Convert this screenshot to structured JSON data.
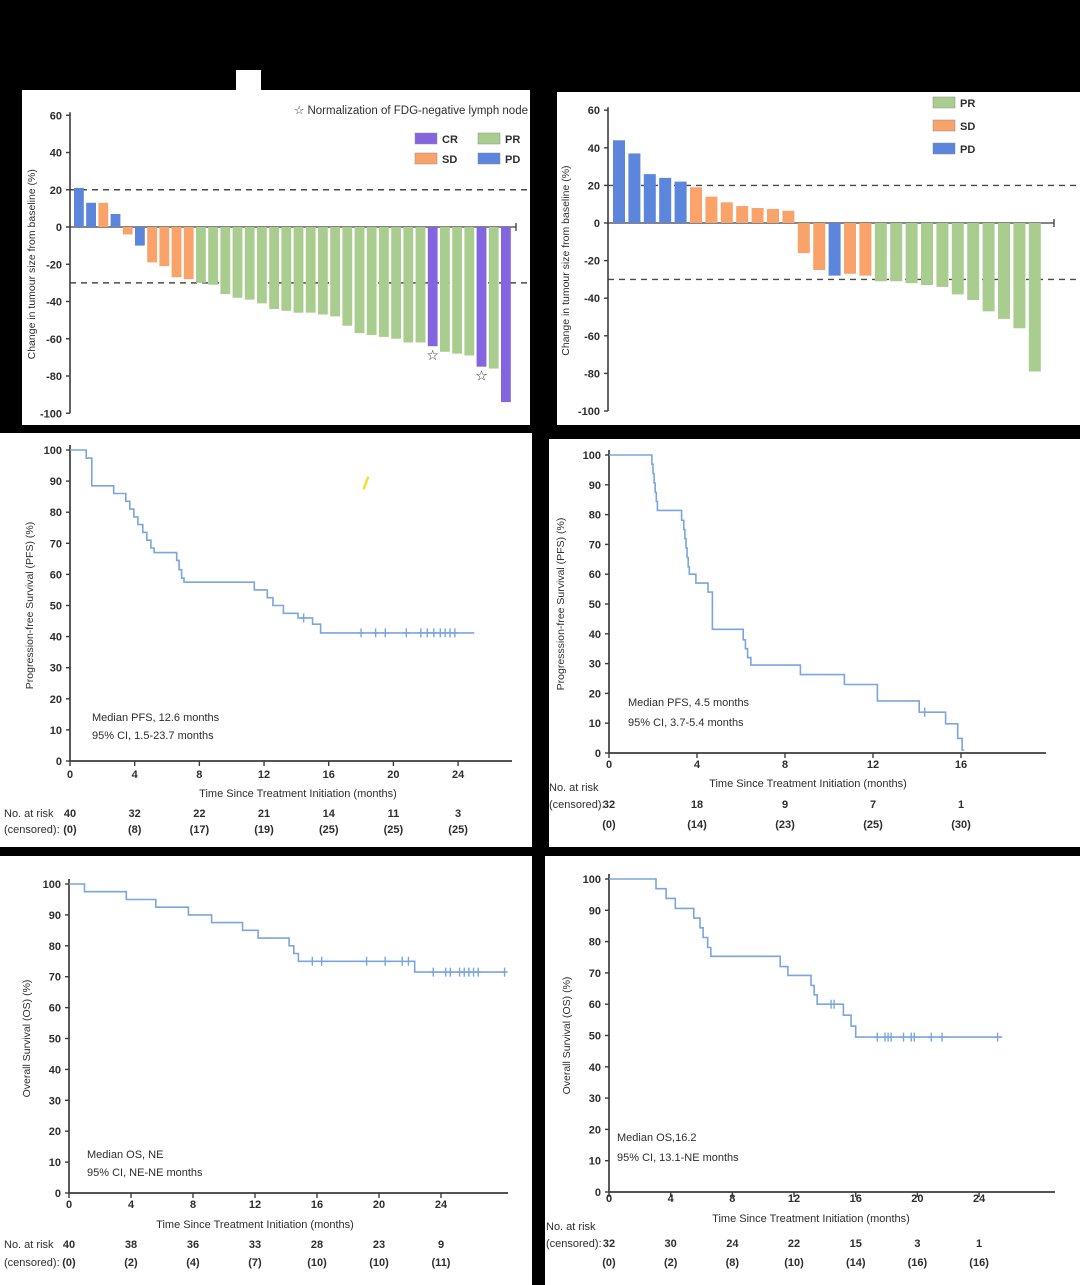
{
  "page": {
    "background": "#000000",
    "description": "Six-panel oncology efficacy figure: two tumour-size waterfall plots and four Kaplan-Meier survival curves"
  },
  "colors": {
    "CR": "#8465e0",
    "SD": "#f9a269",
    "PR": "#a9cd8f",
    "PD": "#5b86db",
    "km_line": "#7aa5e0",
    "axis": "#3c3c3c",
    "dashed": "#4a4a4a",
    "text": "#2e2e2e",
    "highlight": "#f2e33c"
  },
  "chart_data": [
    {
      "id": "waterfall-a",
      "type": "bar",
      "ylabel": "Change in tumour size from baseline (%)",
      "ylim": [
        -100,
        60
      ],
      "yticks": [
        60,
        40,
        20,
        0,
        -20,
        -40,
        -60,
        -80,
        -100
      ],
      "reference_lines": [
        20,
        -30
      ],
      "note": "Normalization of FDG-negative lymph node",
      "note_icon": "star-outline",
      "legend_position": "top-right",
      "legend": [
        {
          "label": "CR",
          "color_key": "CR"
        },
        {
          "label": "SD",
          "color_key": "SD"
        },
        {
          "label": "PR",
          "color_key": "PR"
        },
        {
          "label": "PD",
          "color_key": "PD"
        }
      ],
      "legend_columns": 2,
      "bars": [
        {
          "value": 21,
          "category": "PD"
        },
        {
          "value": 13,
          "category": "PD"
        },
        {
          "value": 13,
          "category": "SD"
        },
        {
          "value": 7,
          "category": "PD"
        },
        {
          "value": -4,
          "category": "SD"
        },
        {
          "value": -10,
          "category": "PD"
        },
        {
          "value": -19,
          "category": "SD"
        },
        {
          "value": -21,
          "category": "SD"
        },
        {
          "value": -27,
          "category": "SD"
        },
        {
          "value": -28,
          "category": "SD"
        },
        {
          "value": -30,
          "category": "PR"
        },
        {
          "value": -31,
          "category": "PR"
        },
        {
          "value": -36,
          "category": "PR"
        },
        {
          "value": -38,
          "category": "PR"
        },
        {
          "value": -39,
          "category": "PR"
        },
        {
          "value": -41,
          "category": "PR"
        },
        {
          "value": -44,
          "category": "PR"
        },
        {
          "value": -45,
          "category": "PR"
        },
        {
          "value": -46,
          "category": "PR"
        },
        {
          "value": -46,
          "category": "PR"
        },
        {
          "value": -47,
          "category": "PR"
        },
        {
          "value": -48,
          "category": "PR"
        },
        {
          "value": -53,
          "category": "PR"
        },
        {
          "value": -57,
          "category": "PR"
        },
        {
          "value": -58,
          "category": "PR"
        },
        {
          "value": -59,
          "category": "PR"
        },
        {
          "value": -60,
          "category": "PR"
        },
        {
          "value": -62,
          "category": "PR"
        },
        {
          "value": -62,
          "category": "PR"
        },
        {
          "value": -64,
          "category": "CR",
          "star": true
        },
        {
          "value": -67,
          "category": "PR"
        },
        {
          "value": -68,
          "category": "PR"
        },
        {
          "value": -69,
          "category": "PR"
        },
        {
          "value": -75,
          "category": "CR",
          "star": true
        },
        {
          "value": -76,
          "category": "PR"
        },
        {
          "value": -94,
          "category": "CR"
        }
      ]
    },
    {
      "id": "waterfall-b",
      "type": "bar",
      "ylabel": "Change in tumour size from baseline (%)",
      "ylim": [
        -100,
        60
      ],
      "yticks": [
        60,
        40,
        20,
        0,
        -20,
        -40,
        -60,
        -80,
        -100
      ],
      "reference_lines": [
        20,
        -30
      ],
      "legend_position": "top-right",
      "legend": [
        {
          "label": "PR",
          "color_key": "PR"
        },
        {
          "label": "SD",
          "color_key": "SD"
        },
        {
          "label": "PD",
          "color_key": "PD"
        }
      ],
      "legend_columns": 1,
      "bars": [
        {
          "value": 44,
          "category": "PD"
        },
        {
          "value": 37,
          "category": "PD"
        },
        {
          "value": 26,
          "category": "PD"
        },
        {
          "value": 24,
          "category": "PD"
        },
        {
          "value": 22,
          "category": "PD"
        },
        {
          "value": 19,
          "category": "SD"
        },
        {
          "value": 14,
          "category": "SD"
        },
        {
          "value": 11,
          "category": "SD"
        },
        {
          "value": 9,
          "category": "SD"
        },
        {
          "value": 8,
          "category": "SD"
        },
        {
          "value": 7.5,
          "category": "SD"
        },
        {
          "value": 6.5,
          "category": "SD"
        },
        {
          "value": -16,
          "category": "SD"
        },
        {
          "value": -25,
          "category": "SD"
        },
        {
          "value": -28,
          "category": "PD"
        },
        {
          "value": -27,
          "category": "SD"
        },
        {
          "value": -28,
          "category": "SD"
        },
        {
          "value": -31,
          "category": "PR"
        },
        {
          "value": -31,
          "category": "PR"
        },
        {
          "value": -32,
          "category": "PR"
        },
        {
          "value": -33,
          "category": "PR"
        },
        {
          "value": -34,
          "category": "PR"
        },
        {
          "value": -38,
          "category": "PR"
        },
        {
          "value": -41,
          "category": "PR"
        },
        {
          "value": -47,
          "category": "PR"
        },
        {
          "value": -51,
          "category": "PR"
        },
        {
          "value": -56,
          "category": "PR"
        },
        {
          "value": -79,
          "category": "PR"
        }
      ]
    },
    {
      "id": "km-pfs-a",
      "type": "line",
      "ylabel": "Progression-free Survival (PFS) (%)",
      "xlabel": "Time Since Treatment Initiation (months)",
      "xticks": [
        0,
        4,
        8,
        12,
        16,
        20,
        24
      ],
      "yticks": [
        0,
        10,
        20,
        30,
        40,
        50,
        60,
        70,
        80,
        90,
        100
      ],
      "xlim": [
        0,
        27.2
      ],
      "ylim": [
        0,
        100
      ],
      "annotation_line1": "Median PFS, 12.6 months",
      "annotation_line2": "95% CI, 1.5-23.7 months",
      "curve_start": [
        0,
        100
      ],
      "curve_end_t": 25.0,
      "steps": [
        [
          1.0,
          97.4
        ],
        [
          1.35,
          88.5
        ],
        [
          2.7,
          86
        ],
        [
          3.45,
          83.5
        ],
        [
          3.7,
          81
        ],
        [
          3.95,
          78.5
        ],
        [
          4.2,
          76
        ],
        [
          4.5,
          73.5
        ],
        [
          4.75,
          71
        ],
        [
          5.0,
          68.5
        ],
        [
          5.2,
          67
        ],
        [
          6.6,
          64.5
        ],
        [
          6.75,
          61.5
        ],
        [
          6.9,
          58.8
        ],
        [
          7.05,
          57.5
        ],
        [
          11.4,
          55
        ],
        [
          12.2,
          52.5
        ],
        [
          12.55,
          50
        ],
        [
          13.2,
          47.5
        ],
        [
          14.1,
          46
        ],
        [
          15.0,
          44
        ],
        [
          15.5,
          41.2
        ]
      ],
      "censor_marks": [
        [
          14.45,
          46
        ],
        [
          18.0,
          41.2
        ],
        [
          18.9,
          41.2
        ],
        [
          19.5,
          41.2
        ],
        [
          20.8,
          41.2
        ],
        [
          21.7,
          41.2
        ],
        [
          22.1,
          41.2
        ],
        [
          22.5,
          41.2
        ],
        [
          22.9,
          41.2
        ],
        [
          23.2,
          41.2
        ],
        [
          23.5,
          41.2
        ],
        [
          23.8,
          41.2
        ]
      ],
      "stray_mark": {
        "t_top": 18.45,
        "pct_top": 91.5,
        "t_bottom": 18.15,
        "pct_bottom": 87.3
      },
      "at_risk": {
        "label_line1": "No. at risk",
        "label_line2": "(censored):",
        "counts": [
          "40",
          "32",
          "22",
          "21",
          "14",
          "11",
          "3"
        ],
        "censored": [
          "(0)",
          "(8)",
          "(17)",
          "(19)",
          "(25)",
          "(25)",
          "(25)"
        ]
      }
    },
    {
      "id": "km-pfs-b",
      "type": "line",
      "ylabel": "Progresssion-free Survival (PFS) (%)",
      "xlabel": "Time Since Treatment Initiation (months)",
      "xticks": [
        0,
        4,
        8,
        12,
        16
      ],
      "yticks": [
        0,
        10,
        20,
        30,
        40,
        50,
        60,
        70,
        80,
        90,
        100
      ],
      "xlim": [
        0,
        19
      ],
      "ylim": [
        0,
        100
      ],
      "annotation_line1": "Median PFS, 4.5 months",
      "annotation_line2": "95% CI, 3.7-5.4 months",
      "curve_start": [
        0,
        100
      ],
      "curve_end_t": 16.15,
      "steps": [
        [
          1.95,
          96.9
        ],
        [
          2.0,
          93.8
        ],
        [
          2.05,
          90.6
        ],
        [
          2.1,
          87.5
        ],
        [
          2.15,
          84.4
        ],
        [
          2.2,
          81.4
        ],
        [
          3.3,
          78.1
        ],
        [
          3.4,
          75
        ],
        [
          3.45,
          71.9
        ],
        [
          3.5,
          68.8
        ],
        [
          3.55,
          65.6
        ],
        [
          3.6,
          62.5
        ],
        [
          3.65,
          60
        ],
        [
          3.95,
          57
        ],
        [
          4.5,
          54
        ],
        [
          4.7,
          41.5
        ],
        [
          6.1,
          38
        ],
        [
          6.2,
          35
        ],
        [
          6.3,
          32
        ],
        [
          6.45,
          29.5
        ],
        [
          8.7,
          26.3
        ],
        [
          10.7,
          23
        ],
        [
          12.2,
          17.5
        ],
        [
          14.1,
          13.7
        ],
        [
          15.3,
          9.8
        ],
        [
          15.85,
          4.9
        ],
        [
          16.05,
          1.0
        ]
      ],
      "censor_marks": [
        [
          14.35,
          13.7
        ]
      ],
      "at_risk": {
        "label_line1": "No. at risk",
        "label_line2": "(censored):",
        "counts": [
          "32",
          "18",
          "9",
          "7",
          "1"
        ],
        "censored": [
          "(0)",
          "(14)",
          "(23)",
          "(25)",
          "(30)"
        ]
      }
    },
    {
      "id": "km-os-a",
      "type": "line",
      "ylabel": "Overall Survival (OS) (%)",
      "xlabel": "Time Since Treatment Initiation (months)",
      "xticks": [
        0,
        4,
        8,
        12,
        16,
        20,
        24
      ],
      "yticks": [
        0,
        10,
        20,
        30,
        40,
        50,
        60,
        70,
        80,
        90,
        100
      ],
      "xlim": [
        0,
        28.3
      ],
      "ylim": [
        0,
        100
      ],
      "annotation_line1": "Median OS, NE",
      "annotation_line2": "95% CI, NE-NE months",
      "curve_start": [
        0,
        100
      ],
      "curve_end_t": 28.2,
      "steps": [
        [
          1.0,
          97.5
        ],
        [
          3.7,
          95
        ],
        [
          5.6,
          92.5
        ],
        [
          7.7,
          90
        ],
        [
          9.2,
          87.5
        ],
        [
          11.2,
          85
        ],
        [
          12.2,
          82.5
        ],
        [
          14.2,
          80
        ],
        [
          14.5,
          77.5
        ],
        [
          14.8,
          75
        ],
        [
          22.3,
          71.5
        ]
      ],
      "censor_marks": [
        [
          15.7,
          75
        ],
        [
          16.3,
          75
        ],
        [
          19.2,
          75
        ],
        [
          20.4,
          75
        ],
        [
          21.5,
          75
        ],
        [
          21.9,
          75
        ],
        [
          23.5,
          71.5
        ],
        [
          24.3,
          71.5
        ],
        [
          24.6,
          71.5
        ],
        [
          25.2,
          71.5
        ],
        [
          25.5,
          71.5
        ],
        [
          25.8,
          71.5
        ],
        [
          26.1,
          71.5
        ],
        [
          26.4,
          71.5
        ],
        [
          28.1,
          71.5
        ]
      ],
      "at_risk": {
        "label_line1": "No. at risk",
        "label_line2": "(censored):",
        "counts": [
          "40",
          "38",
          "36",
          "33",
          "28",
          "23",
          "9"
        ],
        "censored": [
          "(0)",
          "(2)",
          "(4)",
          "(7)",
          "(10)",
          "(10)",
          "(11)"
        ]
      }
    },
    {
      "id": "km-os-b",
      "type": "line",
      "ylabel": "Overall Survival (OS) (%)",
      "xlabel": "Time Since Treatment Initiation (months)",
      "xticks": [
        0,
        4,
        8,
        12,
        16,
        20,
        24
      ],
      "yticks": [
        0,
        10,
        20,
        30,
        40,
        50,
        60,
        70,
        80,
        90,
        100
      ],
      "xlim": [
        0,
        29
      ],
      "ylim": [
        0,
        100
      ],
      "annotation_line1": "Median OS,16.2",
      "annotation_line2": "95% CI, 13.1-NE months",
      "curve_start": [
        0,
        100
      ],
      "curve_end_t": 25.5,
      "steps": [
        [
          3.05,
          96.9
        ],
        [
          3.7,
          93.8
        ],
        [
          4.3,
          90.6
        ],
        [
          5.5,
          87.5
        ],
        [
          5.9,
          84.4
        ],
        [
          6.1,
          81.3
        ],
        [
          6.4,
          78.1
        ],
        [
          6.6,
          75.3
        ],
        [
          11.1,
          72
        ],
        [
          11.6,
          69.2
        ],
        [
          13.1,
          66
        ],
        [
          13.3,
          63
        ],
        [
          13.5,
          60
        ],
        [
          15.2,
          56.5
        ],
        [
          15.7,
          53
        ],
        [
          16.0,
          49.5
        ]
      ],
      "censor_marks": [
        [
          14.4,
          60
        ],
        [
          14.6,
          60
        ],
        [
          17.4,
          49.5
        ],
        [
          17.9,
          49.5
        ],
        [
          18.1,
          49.5
        ],
        [
          18.3,
          49.5
        ],
        [
          19.1,
          49.5
        ],
        [
          19.6,
          49.5
        ],
        [
          19.8,
          49.5
        ],
        [
          20.9,
          49.5
        ],
        [
          21.6,
          49.5
        ],
        [
          25.2,
          49.5
        ]
      ],
      "at_risk": {
        "label_line1": "No. at risk",
        "label_line2": "(censored):",
        "counts": [
          "32",
          "30",
          "24",
          "22",
          "15",
          "3",
          "1"
        ],
        "censored": [
          "(0)",
          "(2)",
          "(8)",
          "(10)",
          "(14)",
          "(16)",
          "(16)"
        ]
      }
    }
  ]
}
